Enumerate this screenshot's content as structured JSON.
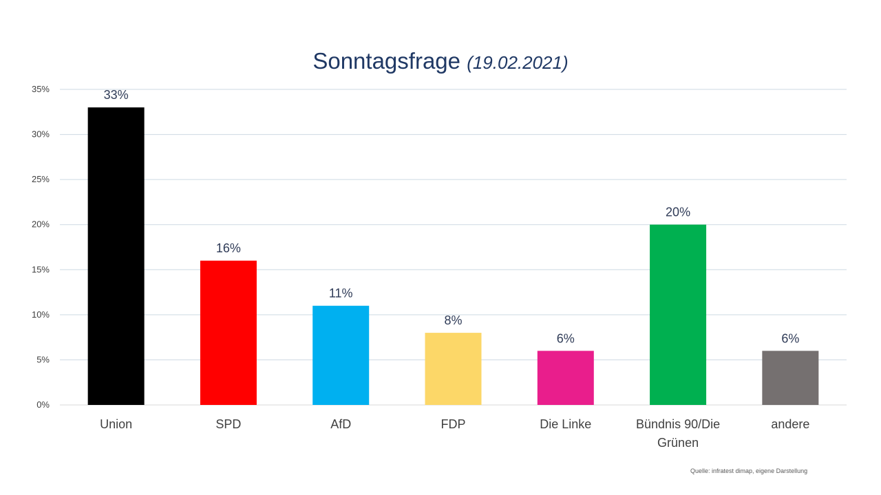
{
  "chart_data": {
    "type": "bar",
    "title": "Sonntagsfrage",
    "subtitle": "(19.02.2021)",
    "categories": [
      "Union",
      "SPD",
      "AfD",
      "FDP",
      "Die Linke",
      "Bündnis 90/Die Grünen",
      "andere"
    ],
    "category_lines": [
      [
        "Union"
      ],
      [
        "SPD"
      ],
      [
        "AfD"
      ],
      [
        "FDP"
      ],
      [
        "Die Linke"
      ],
      [
        "Bündnis 90/Die",
        "Grünen"
      ],
      [
        "andere"
      ]
    ],
    "values": [
      33,
      16,
      11,
      8,
      6,
      20,
      6
    ],
    "value_labels": [
      "33%",
      "16%",
      "11%",
      "8%",
      "6%",
      "20%",
      "6%"
    ],
    "colors": [
      "#000000",
      "#ff0000",
      "#00b0f0",
      "#fcd768",
      "#e91e8c",
      "#00b050",
      "#757070"
    ],
    "yticks": [
      0,
      5,
      10,
      15,
      20,
      25,
      30,
      35
    ],
    "ytick_labels": [
      "0%",
      "5%",
      "10%",
      "15%",
      "20%",
      "25%",
      "30%",
      "35%"
    ],
    "ylim": [
      0,
      35
    ],
    "xlabel": "",
    "ylabel": "",
    "grid": true,
    "legend": "none"
  },
  "source": "Quelle: infratest dimap, eigene Darstellung"
}
